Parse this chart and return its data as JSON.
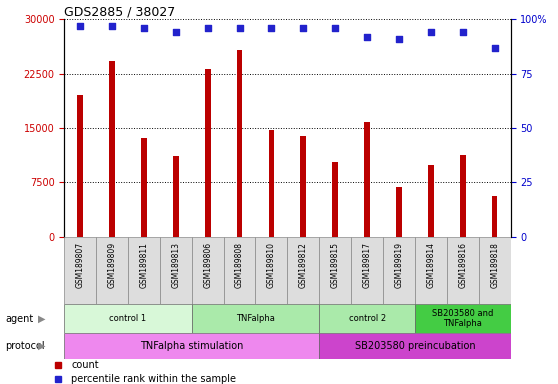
{
  "title": "GDS2885 / 38027",
  "samples": [
    "GSM189807",
    "GSM189809",
    "GSM189811",
    "GSM189813",
    "GSM189806",
    "GSM189808",
    "GSM189810",
    "GSM189812",
    "GSM189815",
    "GSM189817",
    "GSM189819",
    "GSM189814",
    "GSM189816",
    "GSM189818"
  ],
  "counts": [
    19500,
    24200,
    13600,
    11200,
    23200,
    25800,
    14800,
    13900,
    10300,
    15800,
    6900,
    9900,
    11300,
    5600
  ],
  "percentile_ranks": [
    97,
    97,
    96,
    94,
    96,
    96,
    96,
    96,
    96,
    92,
    91,
    94,
    94,
    87
  ],
  "ylim_left": [
    0,
    30000
  ],
  "ylim_right": [
    0,
    100
  ],
  "yticks_left": [
    0,
    7500,
    15000,
    22500,
    30000
  ],
  "yticks_right": [
    0,
    25,
    50,
    75,
    100
  ],
  "bar_color": "#bb0000",
  "dot_color": "#2222cc",
  "agent_groups": [
    {
      "label": "control 1",
      "start": 0,
      "end": 4,
      "color": "#d8f8d8"
    },
    {
      "label": "TNFalpha",
      "start": 4,
      "end": 8,
      "color": "#aaeaaa"
    },
    {
      "label": "control 2",
      "start": 8,
      "end": 11,
      "color": "#aaeaaa"
    },
    {
      "label": "SB203580 and\nTNFalpha",
      "start": 11,
      "end": 14,
      "color": "#44cc44"
    }
  ],
  "protocol_groups": [
    {
      "label": "TNFalpha stimulation",
      "start": 0,
      "end": 8,
      "color": "#ee88ee"
    },
    {
      "label": "SB203580 preincubation",
      "start": 8,
      "end": 14,
      "color": "#cc44cc"
    }
  ],
  "agent_label": "agent",
  "protocol_label": "protocol",
  "legend_count_color": "#bb0000",
  "legend_dot_color": "#2222cc",
  "tick_label_color_left": "#cc0000",
  "tick_label_color_right": "#0000cc",
  "background_color": "#ffffff"
}
